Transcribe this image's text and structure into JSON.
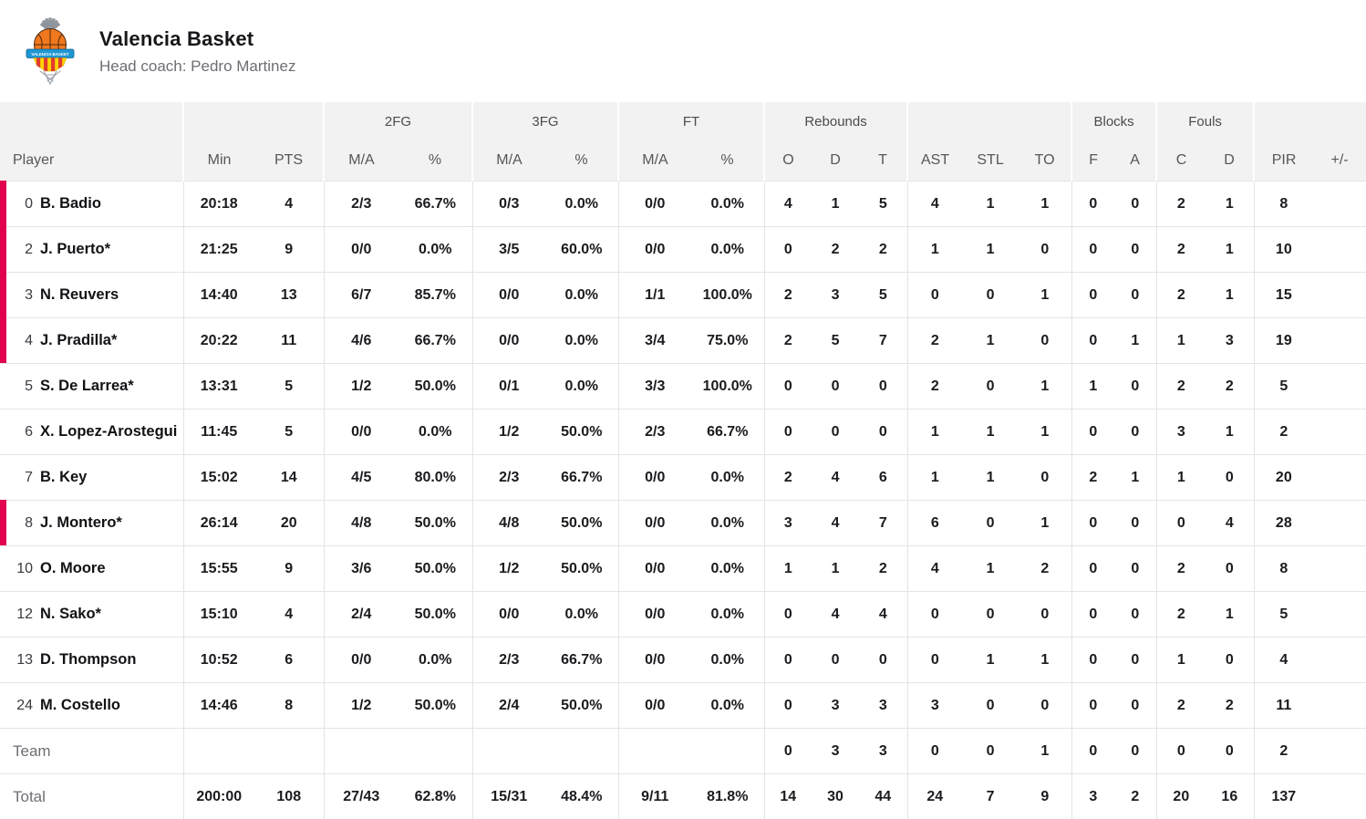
{
  "header": {
    "team_name": "Valencia Basket",
    "coach": "Head coach: Pedro Martinez"
  },
  "colors": {
    "accent_on_court": "#e2024d",
    "header_background": "#f2f2f2",
    "logo_orange": "#f0781e",
    "logo_blue": "#1f97d4",
    "logo_yellow": "#ffd400",
    "logo_red": "#e23b2e"
  },
  "table": {
    "group_headers": [
      {
        "label": ""
      },
      {
        "label": ""
      },
      {
        "label": "2FG"
      },
      {
        "label": "3FG"
      },
      {
        "label": "FT"
      },
      {
        "label": "Rebounds"
      },
      {
        "label": ""
      },
      {
        "label": "Blocks"
      },
      {
        "label": "Fouls"
      },
      {
        "label": ""
      }
    ],
    "columns": [
      "Player",
      "Min",
      "PTS",
      "M/A",
      "%",
      "M/A",
      "%",
      "M/A",
      "%",
      "O",
      "D",
      "T",
      "AST",
      "STL",
      "TO",
      "F",
      "A",
      "C",
      "D",
      "PIR",
      "+/-"
    ],
    "players": [
      {
        "num": "0",
        "name": "B. Badio",
        "starter": false,
        "on_court": true,
        "cells": [
          "20:18",
          "4",
          "2/3",
          "66.7%",
          "0/3",
          "0.0%",
          "0/0",
          "0.0%",
          "4",
          "1",
          "5",
          "4",
          "1",
          "1",
          "0",
          "0",
          "2",
          "1",
          "8",
          ""
        ]
      },
      {
        "num": "2",
        "name": "J. Puerto*",
        "starter": true,
        "on_court": true,
        "cells": [
          "21:25",
          "9",
          "0/0",
          "0.0%",
          "3/5",
          "60.0%",
          "0/0",
          "0.0%",
          "0",
          "2",
          "2",
          "1",
          "1",
          "0",
          "0",
          "0",
          "2",
          "1",
          "10",
          ""
        ]
      },
      {
        "num": "3",
        "name": "N. Reuvers",
        "starter": false,
        "on_court": true,
        "cells": [
          "14:40",
          "13",
          "6/7",
          "85.7%",
          "0/0",
          "0.0%",
          "1/1",
          "100.0%",
          "2",
          "3",
          "5",
          "0",
          "0",
          "1",
          "0",
          "0",
          "2",
          "1",
          "15",
          ""
        ]
      },
      {
        "num": "4",
        "name": "J. Pradilla*",
        "starter": true,
        "on_court": true,
        "cells": [
          "20:22",
          "11",
          "4/6",
          "66.7%",
          "0/0",
          "0.0%",
          "3/4",
          "75.0%",
          "2",
          "5",
          "7",
          "2",
          "1",
          "0",
          "0",
          "1",
          "1",
          "3",
          "19",
          ""
        ]
      },
      {
        "num": "5",
        "name": "S. De Larrea*",
        "starter": true,
        "on_court": false,
        "cells": [
          "13:31",
          "5",
          "1/2",
          "50.0%",
          "0/1",
          "0.0%",
          "3/3",
          "100.0%",
          "0",
          "0",
          "0",
          "2",
          "0",
          "1",
          "1",
          "0",
          "2",
          "2",
          "5",
          ""
        ]
      },
      {
        "num": "6",
        "name": "X. Lopez-Arostegui",
        "starter": false,
        "on_court": false,
        "cells": [
          "11:45",
          "5",
          "0/0",
          "0.0%",
          "1/2",
          "50.0%",
          "2/3",
          "66.7%",
          "0",
          "0",
          "0",
          "1",
          "1",
          "1",
          "0",
          "0",
          "3",
          "1",
          "2",
          ""
        ]
      },
      {
        "num": "7",
        "name": "B. Key",
        "starter": false,
        "on_court": false,
        "cells": [
          "15:02",
          "14",
          "4/5",
          "80.0%",
          "2/3",
          "66.7%",
          "0/0",
          "0.0%",
          "2",
          "4",
          "6",
          "1",
          "1",
          "0",
          "2",
          "1",
          "1",
          "0",
          "20",
          ""
        ]
      },
      {
        "num": "8",
        "name": "J. Montero*",
        "starter": true,
        "on_court": true,
        "cells": [
          "26:14",
          "20",
          "4/8",
          "50.0%",
          "4/8",
          "50.0%",
          "0/0",
          "0.0%",
          "3",
          "4",
          "7",
          "6",
          "0",
          "1",
          "0",
          "0",
          "0",
          "4",
          "28",
          ""
        ]
      },
      {
        "num": "10",
        "name": "O. Moore",
        "starter": false,
        "on_court": false,
        "cells": [
          "15:55",
          "9",
          "3/6",
          "50.0%",
          "1/2",
          "50.0%",
          "0/0",
          "0.0%",
          "1",
          "1",
          "2",
          "4",
          "1",
          "2",
          "0",
          "0",
          "2",
          "0",
          "8",
          ""
        ]
      },
      {
        "num": "12",
        "name": "N. Sako*",
        "starter": true,
        "on_court": false,
        "cells": [
          "15:10",
          "4",
          "2/4",
          "50.0%",
          "0/0",
          "0.0%",
          "0/0",
          "0.0%",
          "0",
          "4",
          "4",
          "0",
          "0",
          "0",
          "0",
          "0",
          "2",
          "1",
          "5",
          ""
        ]
      },
      {
        "num": "13",
        "name": "D. Thompson",
        "starter": false,
        "on_court": false,
        "cells": [
          "10:52",
          "6",
          "0/0",
          "0.0%",
          "2/3",
          "66.7%",
          "0/0",
          "0.0%",
          "0",
          "0",
          "0",
          "0",
          "1",
          "1",
          "0",
          "0",
          "1",
          "0",
          "4",
          ""
        ]
      },
      {
        "num": "24",
        "name": "M. Costello",
        "starter": false,
        "on_court": false,
        "cells": [
          "14:46",
          "8",
          "1/2",
          "50.0%",
          "2/4",
          "50.0%",
          "0/0",
          "0.0%",
          "0",
          "3",
          "3",
          "3",
          "0",
          "0",
          "0",
          "0",
          "2",
          "2",
          "11",
          ""
        ]
      }
    ],
    "team_row": {
      "label": "Team",
      "cells": [
        "",
        "",
        "",
        "",
        "",
        "",
        "",
        "",
        "0",
        "3",
        "3",
        "0",
        "0",
        "1",
        "0",
        "0",
        "0",
        "0",
        "2",
        ""
      ]
    },
    "total_row": {
      "label": "Total",
      "cells": [
        "200:00",
        "108",
        "27/43",
        "62.8%",
        "15/31",
        "48.4%",
        "9/11",
        "81.8%",
        "14",
        "30",
        "44",
        "24",
        "7",
        "9",
        "3",
        "2",
        "20",
        "16",
        "137",
        ""
      ]
    }
  }
}
